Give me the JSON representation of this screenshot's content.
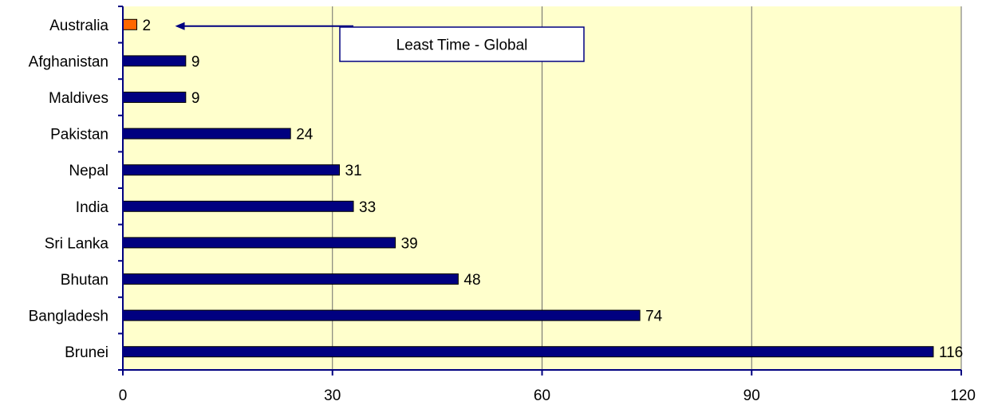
{
  "chart_data": {
    "type": "bar",
    "orientation": "horizontal",
    "categories": [
      "Australia",
      "Afghanistan",
      "Maldives",
      "Pakistan",
      "Nepal",
      "India",
      "Sri Lanka",
      "Bhutan",
      "Bangladesh",
      "Brunei"
    ],
    "values": [
      2,
      9,
      9,
      24,
      31,
      33,
      39,
      48,
      74,
      116
    ],
    "title": "",
    "xlabel": "",
    "ylabel": "",
    "xlim": [
      0,
      120
    ],
    "xticks": [
      "0",
      "30",
      "60",
      "90",
      "120"
    ],
    "grid": "vertical",
    "legend": "none",
    "annotation": {
      "text": "Least Time - Global",
      "target": "Australia"
    },
    "colors": {
      "bar": "#000080",
      "highlight": "#FF6600",
      "plot_background": "#FFFFCC",
      "arrow": "#000080",
      "annotation_border": "#000080"
    }
  }
}
